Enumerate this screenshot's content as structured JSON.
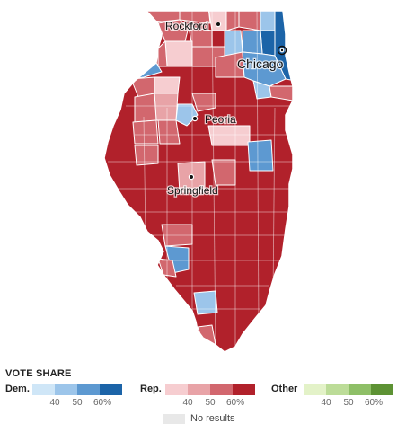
{
  "map": {
    "cities": [
      {
        "name": "Rockford",
        "marker": "dot"
      },
      {
        "name": "Chicago",
        "marker": "ring"
      },
      {
        "name": "Peoria",
        "marker": "dot"
      },
      {
        "name": "Springfield",
        "marker": "dot"
      }
    ],
    "colors": {
      "dem": [
        "#cfe6f7",
        "#9cc5ea",
        "#5d99d1",
        "#1c64a8"
      ],
      "rep": [
        "#f6cdd0",
        "#e8a3a7",
        "#d2676e",
        "#b1212b"
      ],
      "other": [
        "#e3f2c8",
        "#bcdc98",
        "#8ebf67",
        "#5d9234"
      ],
      "no_results": "#e8e8e8"
    }
  },
  "legend": {
    "title": "VOTE SHARE",
    "dem": {
      "label": "Dem.",
      "ticks": [
        "40",
        "50",
        "60%"
      ]
    },
    "rep": {
      "label": "Rep.",
      "ticks": [
        "40",
        "50",
        "60%"
      ]
    },
    "other": {
      "label": "Other",
      "ticks": [
        "40",
        "50",
        "60%"
      ]
    },
    "no_results": "No results"
  }
}
